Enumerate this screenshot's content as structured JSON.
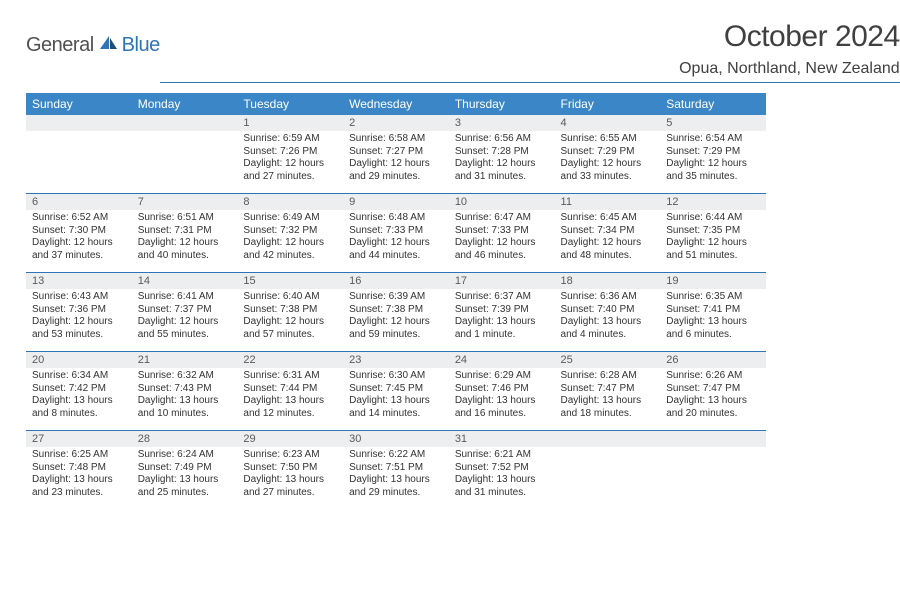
{
  "logo": {
    "text1": "General",
    "text2": "Blue"
  },
  "title": "October 2024",
  "subtitle": "Opua, Northland, New Zealand",
  "weekdays": [
    "Sunday",
    "Monday",
    "Tuesday",
    "Wednesday",
    "Thursday",
    "Friday",
    "Saturday"
  ],
  "colors": {
    "header_bg": "#3b86c6",
    "accent": "#2e75b6",
    "daynum_bg": "#eceef0",
    "text": "#333333"
  },
  "weeks": [
    [
      null,
      null,
      {
        "n": "1",
        "su": "Sunrise: 6:59 AM",
        "ss": "Sunset: 7:26 PM",
        "dl": "Daylight: 12 hours and 27 minutes."
      },
      {
        "n": "2",
        "su": "Sunrise: 6:58 AM",
        "ss": "Sunset: 7:27 PM",
        "dl": "Daylight: 12 hours and 29 minutes."
      },
      {
        "n": "3",
        "su": "Sunrise: 6:56 AM",
        "ss": "Sunset: 7:28 PM",
        "dl": "Daylight: 12 hours and 31 minutes."
      },
      {
        "n": "4",
        "su": "Sunrise: 6:55 AM",
        "ss": "Sunset: 7:29 PM",
        "dl": "Daylight: 12 hours and 33 minutes."
      },
      {
        "n": "5",
        "su": "Sunrise: 6:54 AM",
        "ss": "Sunset: 7:29 PM",
        "dl": "Daylight: 12 hours and 35 minutes."
      }
    ],
    [
      {
        "n": "6",
        "su": "Sunrise: 6:52 AM",
        "ss": "Sunset: 7:30 PM",
        "dl": "Daylight: 12 hours and 37 minutes."
      },
      {
        "n": "7",
        "su": "Sunrise: 6:51 AM",
        "ss": "Sunset: 7:31 PM",
        "dl": "Daylight: 12 hours and 40 minutes."
      },
      {
        "n": "8",
        "su": "Sunrise: 6:49 AM",
        "ss": "Sunset: 7:32 PM",
        "dl": "Daylight: 12 hours and 42 minutes."
      },
      {
        "n": "9",
        "su": "Sunrise: 6:48 AM",
        "ss": "Sunset: 7:33 PM",
        "dl": "Daylight: 12 hours and 44 minutes."
      },
      {
        "n": "10",
        "su": "Sunrise: 6:47 AM",
        "ss": "Sunset: 7:33 PM",
        "dl": "Daylight: 12 hours and 46 minutes."
      },
      {
        "n": "11",
        "su": "Sunrise: 6:45 AM",
        "ss": "Sunset: 7:34 PM",
        "dl": "Daylight: 12 hours and 48 minutes."
      },
      {
        "n": "12",
        "su": "Sunrise: 6:44 AM",
        "ss": "Sunset: 7:35 PM",
        "dl": "Daylight: 12 hours and 51 minutes."
      }
    ],
    [
      {
        "n": "13",
        "su": "Sunrise: 6:43 AM",
        "ss": "Sunset: 7:36 PM",
        "dl": "Daylight: 12 hours and 53 minutes."
      },
      {
        "n": "14",
        "su": "Sunrise: 6:41 AM",
        "ss": "Sunset: 7:37 PM",
        "dl": "Daylight: 12 hours and 55 minutes."
      },
      {
        "n": "15",
        "su": "Sunrise: 6:40 AM",
        "ss": "Sunset: 7:38 PM",
        "dl": "Daylight: 12 hours and 57 minutes."
      },
      {
        "n": "16",
        "su": "Sunrise: 6:39 AM",
        "ss": "Sunset: 7:38 PM",
        "dl": "Daylight: 12 hours and 59 minutes."
      },
      {
        "n": "17",
        "su": "Sunrise: 6:37 AM",
        "ss": "Sunset: 7:39 PM",
        "dl": "Daylight: 13 hours and 1 minute."
      },
      {
        "n": "18",
        "su": "Sunrise: 6:36 AM",
        "ss": "Sunset: 7:40 PM",
        "dl": "Daylight: 13 hours and 4 minutes."
      },
      {
        "n": "19",
        "su": "Sunrise: 6:35 AM",
        "ss": "Sunset: 7:41 PM",
        "dl": "Daylight: 13 hours and 6 minutes."
      }
    ],
    [
      {
        "n": "20",
        "su": "Sunrise: 6:34 AM",
        "ss": "Sunset: 7:42 PM",
        "dl": "Daylight: 13 hours and 8 minutes."
      },
      {
        "n": "21",
        "su": "Sunrise: 6:32 AM",
        "ss": "Sunset: 7:43 PM",
        "dl": "Daylight: 13 hours and 10 minutes."
      },
      {
        "n": "22",
        "su": "Sunrise: 6:31 AM",
        "ss": "Sunset: 7:44 PM",
        "dl": "Daylight: 13 hours and 12 minutes."
      },
      {
        "n": "23",
        "su": "Sunrise: 6:30 AM",
        "ss": "Sunset: 7:45 PM",
        "dl": "Daylight: 13 hours and 14 minutes."
      },
      {
        "n": "24",
        "su": "Sunrise: 6:29 AM",
        "ss": "Sunset: 7:46 PM",
        "dl": "Daylight: 13 hours and 16 minutes."
      },
      {
        "n": "25",
        "su": "Sunrise: 6:28 AM",
        "ss": "Sunset: 7:47 PM",
        "dl": "Daylight: 13 hours and 18 minutes."
      },
      {
        "n": "26",
        "su": "Sunrise: 6:26 AM",
        "ss": "Sunset: 7:47 PM",
        "dl": "Daylight: 13 hours and 20 minutes."
      }
    ],
    [
      {
        "n": "27",
        "su": "Sunrise: 6:25 AM",
        "ss": "Sunset: 7:48 PM",
        "dl": "Daylight: 13 hours and 23 minutes."
      },
      {
        "n": "28",
        "su": "Sunrise: 6:24 AM",
        "ss": "Sunset: 7:49 PM",
        "dl": "Daylight: 13 hours and 25 minutes."
      },
      {
        "n": "29",
        "su": "Sunrise: 6:23 AM",
        "ss": "Sunset: 7:50 PM",
        "dl": "Daylight: 13 hours and 27 minutes."
      },
      {
        "n": "30",
        "su": "Sunrise: 6:22 AM",
        "ss": "Sunset: 7:51 PM",
        "dl": "Daylight: 13 hours and 29 minutes."
      },
      {
        "n": "31",
        "su": "Sunrise: 6:21 AM",
        "ss": "Sunset: 7:52 PM",
        "dl": "Daylight: 13 hours and 31 minutes."
      },
      null,
      null
    ]
  ]
}
